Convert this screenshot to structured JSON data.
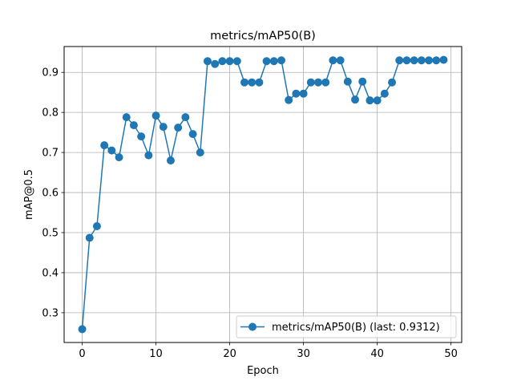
{
  "chart_data": {
    "type": "line",
    "title": "metrics/mAP50(B)",
    "xlabel": "Epoch",
    "ylabel": "mAP@0.5",
    "xlim": [
      -2.45,
      51.45
    ],
    "ylim": [
      0.2257,
      0.9645
    ],
    "xticks": [
      0,
      10,
      20,
      30,
      40,
      50
    ],
    "yticks": [
      0.3,
      0.4,
      0.5,
      0.6,
      0.7,
      0.8,
      0.9
    ],
    "ytick_labels": [
      "0.3",
      "0.4",
      "0.5",
      "0.6",
      "0.7",
      "0.8",
      "0.9"
    ],
    "grid": true,
    "legend_position": "lower-right",
    "series": [
      {
        "name": "metrics/mAP50(B) (last: 0.9312)",
        "color": "#1f77b4",
        "marker": "circle",
        "x": [
          0,
          1,
          2,
          3,
          4,
          5,
          6,
          7,
          8,
          9,
          10,
          11,
          12,
          13,
          14,
          15,
          16,
          17,
          18,
          19,
          20,
          21,
          22,
          23,
          24,
          25,
          26,
          27,
          28,
          29,
          30,
          31,
          32,
          33,
          34,
          35,
          36,
          37,
          38,
          39,
          40,
          41,
          42,
          43,
          44,
          45,
          46,
          47,
          48,
          49
        ],
        "values": [
          0.259,
          0.487,
          0.516,
          0.718,
          0.705,
          0.688,
          0.788,
          0.768,
          0.74,
          0.693,
          0.792,
          0.764,
          0.68,
          0.762,
          0.788,
          0.746,
          0.7,
          0.928,
          0.921,
          0.928,
          0.928,
          0.928,
          0.875,
          0.875,
          0.875,
          0.928,
          0.928,
          0.93,
          0.831,
          0.847,
          0.847,
          0.875,
          0.875,
          0.875,
          0.93,
          0.93,
          0.877,
          0.832,
          0.877,
          0.83,
          0.83,
          0.847,
          0.875,
          0.93,
          0.93,
          0.93,
          0.93,
          0.93,
          0.93,
          0.9312
        ]
      }
    ]
  }
}
